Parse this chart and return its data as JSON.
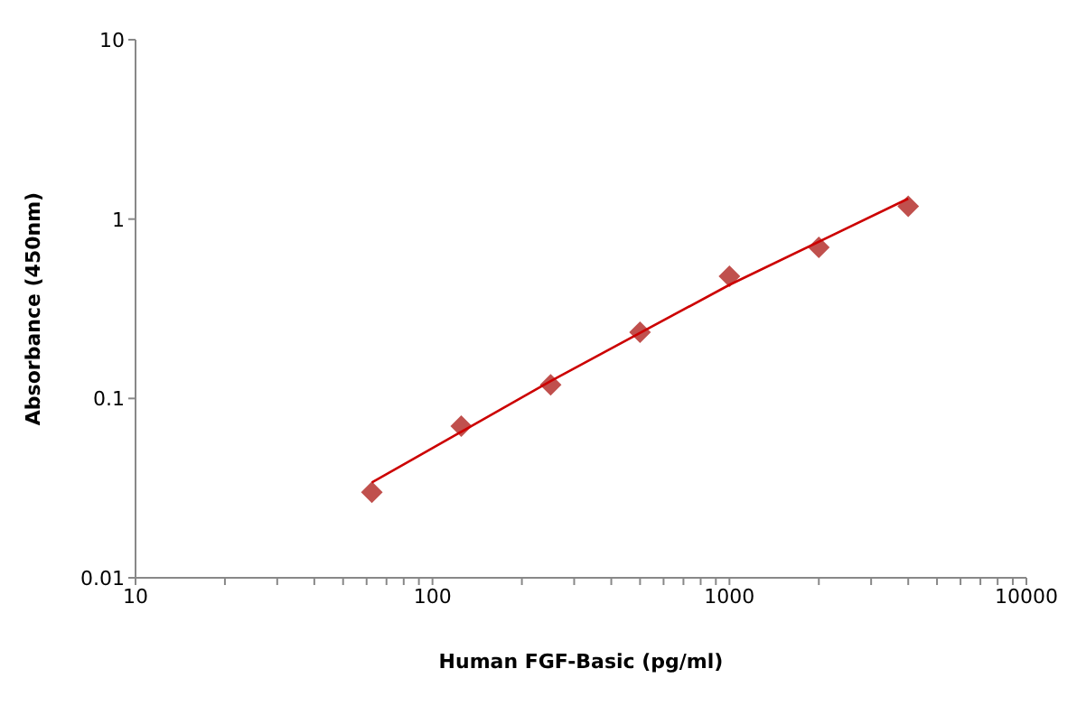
{
  "chart_data": {
    "type": "scatter",
    "xlabel": "Human FGF-Basic  (pg/ml)",
    "ylabel": "Absorbance (450nm)",
    "log": "xy",
    "marker": "diamond",
    "grid": false,
    "legend": false,
    "xlim": [
      10,
      10000
    ],
    "xticks": [
      10,
      {
        "value": 20,
        "label": null
      },
      {
        "value": 30,
        "label": null
      },
      {
        "value": 40,
        "label": null
      },
      {
        "value": 50,
        "label": null
      },
      {
        "value": 60,
        "label": null
      },
      {
        "value": 70,
        "label": null
      },
      {
        "value": 80,
        "label": null
      },
      {
        "value": 90,
        "label": null
      },
      100,
      {
        "value": 200,
        "label": null
      },
      {
        "value": 300,
        "label": null
      },
      {
        "value": 400,
        "label": null
      },
      {
        "value": 500,
        "label": null
      },
      {
        "value": 600,
        "label": null
      },
      {
        "value": 700,
        "label": null
      },
      {
        "value": 800,
        "label": null
      },
      {
        "value": 900,
        "label": null
      },
      1000,
      {
        "value": 2000,
        "label": null
      },
      {
        "value": 3000,
        "label": null
      },
      {
        "value": 4000,
        "label": null
      },
      {
        "value": 5000,
        "label": null
      },
      {
        "value": 6000,
        "label": null
      },
      {
        "value": 7000,
        "label": null
      },
      {
        "value": 8000,
        "label": null
      },
      {
        "value": 9000,
        "label": null
      },
      10000
    ],
    "ylim": [
      0.01,
      10
    ],
    "yticks": [
      0.01,
      0.1,
      1,
      10
    ],
    "series": [
      {
        "type": "scatter",
        "color": "#c0504d",
        "x": [
          62.5,
          125,
          250,
          500,
          1000,
          2000,
          4000
        ],
        "values": [
          0.03,
          0.07,
          0.119,
          0.234,
          0.48,
          0.695,
          1.18
        ]
      },
      {
        "type": "line",
        "color": "#cc0000",
        "marker": "none",
        "x": [
          62.5,
          250,
          1000,
          4000
        ],
        "values": [
          0.034,
          0.125,
          0.43,
          1.3
        ]
      }
    ]
  }
}
